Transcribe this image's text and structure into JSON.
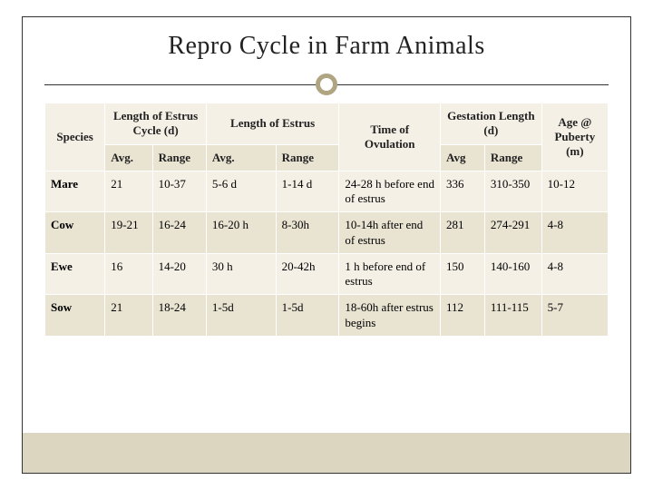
{
  "title": "Repro Cycle in Farm Animals",
  "colors": {
    "frame_border": "#333333",
    "accent_ring": "#b0a582",
    "row_light": "#f4f0e6",
    "row_dark": "#e9e3d2",
    "bottom_bar": "#dcd6c0",
    "text": "#222222"
  },
  "table": {
    "type": "table",
    "headers_row1": {
      "species": "Species",
      "estrus_cycle": "Length of Estrus Cycle (d)",
      "estrus": "Length of Estrus",
      "ovulation": "Time of Ovulation",
      "gestation": "Gestation Length (d)",
      "puberty": "Age @ Puberty (m)"
    },
    "headers_row2": {
      "avg1": "Avg.",
      "range1": "Range",
      "avg2": "Avg.",
      "range2": "Range",
      "avg3": "Avg",
      "range3": "Range"
    },
    "rows": [
      {
        "species": "Mare",
        "cycle_avg": "21",
        "cycle_range": "10-37",
        "estrus_avg": "5-6 d",
        "estrus_range": "1-14 d",
        "ovulation": "24-28 h before end of estrus",
        "gest_avg": "336",
        "gest_range": "310-350",
        "puberty": "10-12"
      },
      {
        "species": "Cow",
        "cycle_avg": "19-21",
        "cycle_range": "16-24",
        "estrus_avg": "16-20 h",
        "estrus_range": "8-30h",
        "ovulation": "10-14h after end of estrus",
        "gest_avg": "281",
        "gest_range": "274-291",
        "puberty": "4-8"
      },
      {
        "species": "Ewe",
        "cycle_avg": "16",
        "cycle_range": "14-20",
        "estrus_avg": "30 h",
        "estrus_range": "20-42h",
        "ovulation": "1 h before end of estrus",
        "gest_avg": "150",
        "gest_range": "140-160",
        "puberty": "4-8"
      },
      {
        "species": "Sow",
        "cycle_avg": "21",
        "cycle_range": "18-24",
        "estrus_avg": "1-5d",
        "estrus_range": "1-5d",
        "ovulation": "18-60h after estrus begins",
        "gest_avg": "112",
        "gest_range": "111-115",
        "puberty": "5-7"
      }
    ]
  }
}
